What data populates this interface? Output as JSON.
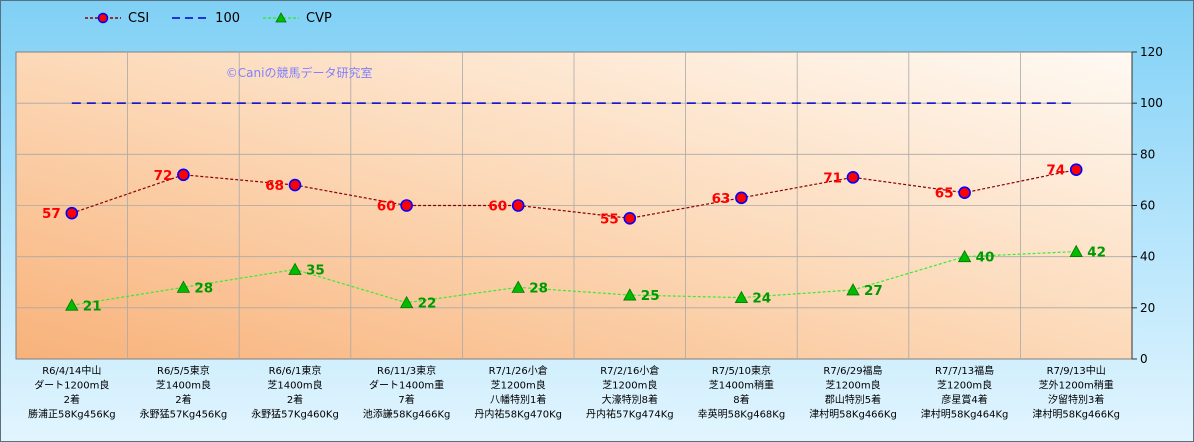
{
  "chart_data": {
    "type": "line",
    "watermark": "©Caniの競馬データ研究室",
    "categories": [
      [
        "R6/4/14中山",
        "ダート1200m良",
        "2着",
        "勝浦正58Kg456Kg"
      ],
      [
        "R6/5/5東京",
        "芝1400m良",
        "2着",
        "永野猛57Kg456Kg"
      ],
      [
        "R6/6/1東京",
        "芝1400m良",
        "2着",
        "永野猛57Kg460Kg"
      ],
      [
        "R6/11/3東京",
        "ダート1400m重",
        "7着",
        "池添謙58Kg466Kg"
      ],
      [
        "R7/1/26小倉",
        "芝1200m良",
        "八幡特別1着",
        "丹内祐58Kg470Kg"
      ],
      [
        "R7/2/16小倉",
        "芝1200m良",
        "大濠特別8着",
        "丹内祐57Kg474Kg"
      ],
      [
        "R7/5/10東京",
        "芝1400m稍重",
        "8着",
        "幸英明58Kg468Kg"
      ],
      [
        "R7/6/29福島",
        "芝1200m良",
        "郡山特別5着",
        "津村明58Kg466Kg"
      ],
      [
        "R7/7/13福島",
        "芝1200m良",
        "彦星賞4着",
        "津村明58Kg464Kg"
      ],
      [
        "R7/9/13中山",
        "芝外1200m稍重",
        "汐留特別3着",
        "津村明58Kg466Kg"
      ]
    ],
    "series": [
      {
        "name": "CSI",
        "values": [
          57,
          72,
          68,
          60,
          60,
          55,
          63,
          71,
          65,
          74
        ],
        "color": "#8b0000",
        "marker": "circle",
        "marker_fill": "#ff0000",
        "marker_stroke": "#0000ff",
        "label_color": "#ff0000"
      },
      {
        "name": "100",
        "values": [
          100,
          100,
          100,
          100,
          100,
          100,
          100,
          100,
          100,
          100
        ],
        "color": "#0000cc",
        "marker": "none"
      },
      {
        "name": "CVP",
        "values": [
          21,
          28,
          35,
          22,
          28,
          25,
          24,
          27,
          40,
          42
        ],
        "color": "#33ee33",
        "marker": "triangle",
        "marker_fill": "#00bb00",
        "label_color": "#009900"
      }
    ],
    "ylim": [
      0,
      120
    ],
    "yticks": [
      0,
      20,
      40,
      60,
      80,
      100,
      120
    ],
    "y_axis_side": "right",
    "grid": true,
    "legend_position": "top-left"
  }
}
